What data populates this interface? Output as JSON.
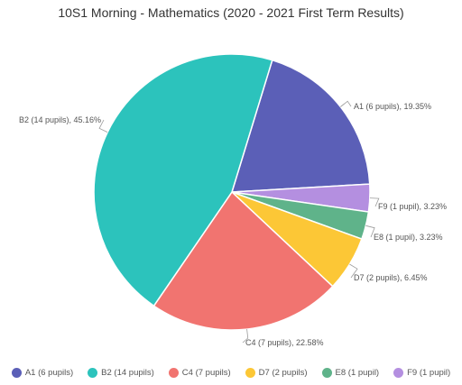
{
  "chart_data": {
    "type": "pie",
    "title": "10S1 Morning - Mathematics (2020 - 2021 First Term Results)",
    "slices": [
      {
        "name": "A1 (6 pupils)",
        "value": 6,
        "label": "A1 (6 pupils), 19.35%",
        "color": "#5b5fb7"
      },
      {
        "name": "F9 (1 pupil)",
        "value": 1,
        "label": "F9 (1 pupil), 3.23%",
        "color": "#b48fe0"
      },
      {
        "name": "E8 (1 pupil)",
        "value": 1,
        "label": "E8 (1 pupil), 3.23%",
        "color": "#5fb38a"
      },
      {
        "name": "D7 (2 pupils)",
        "value": 2,
        "label": "D7 (2 pupils), 6.45%",
        "color": "#fcc736"
      },
      {
        "name": "C4 (7 pupils)",
        "value": 7,
        "label": "C4 (7 pupils), 22.58%",
        "color": "#f17470"
      },
      {
        "name": "B2 (14 pupils)",
        "value": 14,
        "label": "B2 (14 pupils), 45.16%",
        "color": "#2cc3bc"
      }
    ],
    "legend": {
      "placement": "bottom",
      "items": [
        {
          "label": "A1 (6 pupils)",
          "color": "#5b5fb7"
        },
        {
          "label": "B2 (14 pupils)",
          "color": "#2cc3bc"
        },
        {
          "label": "C4 (7 pupils)",
          "color": "#f17470"
        },
        {
          "label": "D7 (2 pupils)",
          "color": "#fcc736"
        },
        {
          "label": "E8 (1 pupil)",
          "color": "#5fb38a"
        },
        {
          "label": "F9 (1 pupil)",
          "color": "#b48fe0"
        }
      ]
    }
  }
}
